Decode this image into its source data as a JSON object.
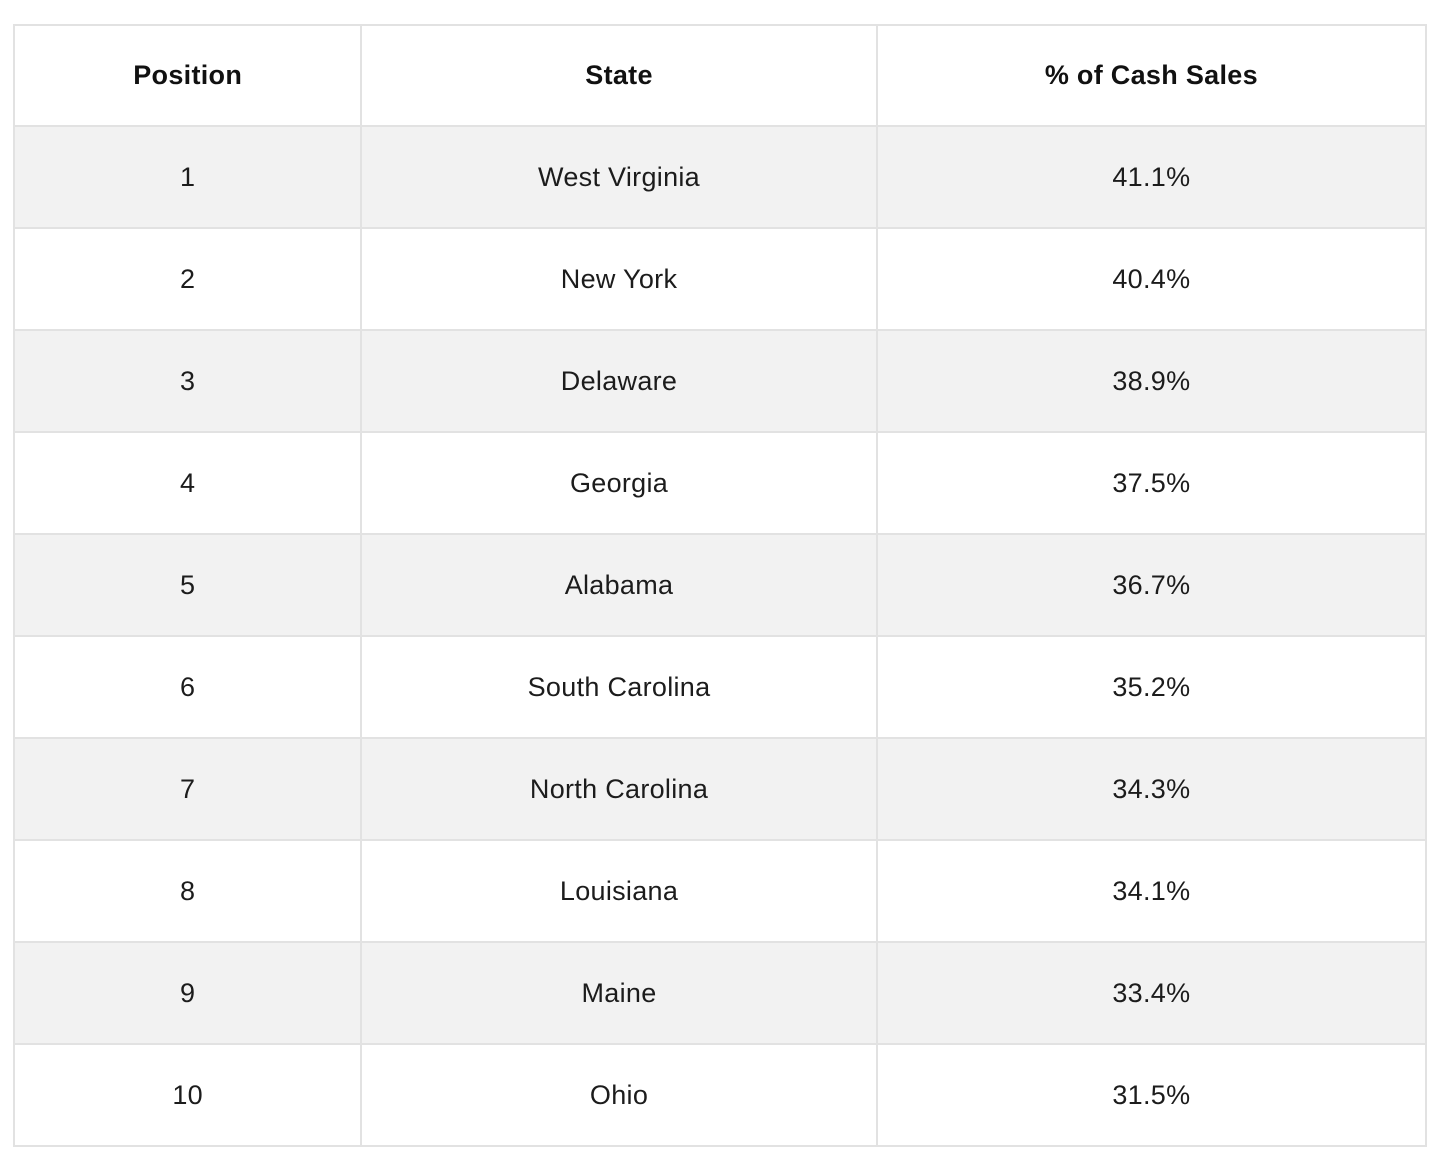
{
  "table": {
    "columns": {
      "position": "Position",
      "state": "State",
      "pct": "% of Cash Sales"
    },
    "rows": [
      {
        "position": "1",
        "state": "West Virginia",
        "pct": "41.1%"
      },
      {
        "position": "2",
        "state": "New York",
        "pct": "40.4%"
      },
      {
        "position": "3",
        "state": "Delaware",
        "pct": "38.9%"
      },
      {
        "position": "4",
        "state": "Georgia",
        "pct": "37.5%"
      },
      {
        "position": "5",
        "state": "Alabama",
        "pct": "36.7%"
      },
      {
        "position": "6",
        "state": "South Carolina",
        "pct": "35.2%"
      },
      {
        "position": "7",
        "state": "North Carolina",
        "pct": "34.3%"
      },
      {
        "position": "8",
        "state": "Louisiana",
        "pct": "34.1%"
      },
      {
        "position": "9",
        "state": "Maine",
        "pct": "33.4%"
      },
      {
        "position": "10",
        "state": "Ohio",
        "pct": "31.5%"
      }
    ]
  },
  "colors": {
    "stripe_row_background": "#f2f2f2",
    "grid_border": "#e2e2e2",
    "text": "#1c1c1c",
    "page_background": "#ffffff"
  }
}
